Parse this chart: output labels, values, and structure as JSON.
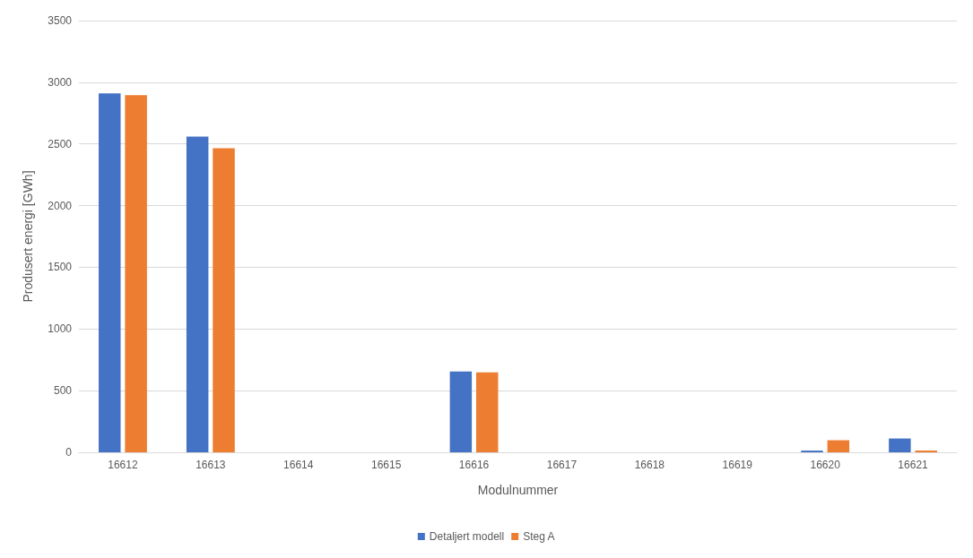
{
  "chart_data": {
    "type": "bar",
    "xlabel": "Modulnummer",
    "ylabel": "Produsert energi [GWh]",
    "categories": [
      "16612",
      "16613",
      "16614",
      "16615",
      "16616",
      "16617",
      "16618",
      "16619",
      "16620",
      "16621"
    ],
    "series": [
      {
        "name": "Detaljert modell",
        "color": "#4472c4",
        "values": [
          2910,
          2560,
          0,
          0,
          655,
          0,
          0,
          0,
          14,
          112
        ]
      },
      {
        "name": "Steg A",
        "color": "#ed7d31",
        "values": [
          2895,
          2465,
          0,
          0,
          648,
          0,
          0,
          0,
          98,
          14
        ]
      }
    ],
    "ylim": [
      0,
      3500
    ],
    "yticks": [
      0,
      500,
      1000,
      1500,
      2000,
      2500,
      3000,
      3500
    ],
    "grid": "y",
    "legend": "bottom"
  }
}
